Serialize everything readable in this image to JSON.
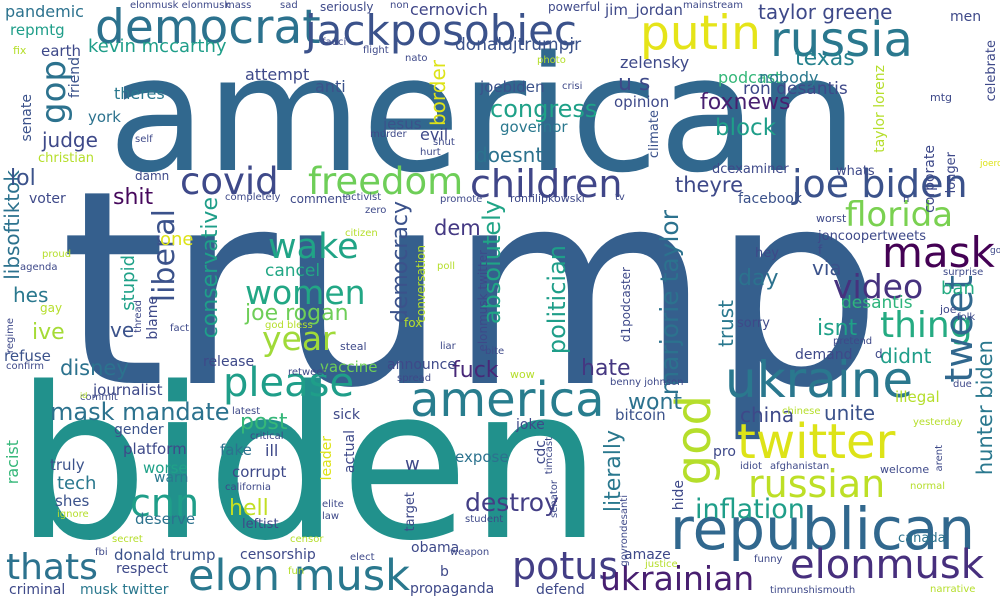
{
  "word_cloud": {
    "words": [
      {
        "text": "trump",
        "color": "#355f8d"
      },
      {
        "text": "biden",
        "color": "#21918c"
      },
      {
        "text": "american",
        "color": "#31688e"
      },
      {
        "text": "democrat",
        "color": "#2c728e"
      },
      {
        "text": "jackposobiec",
        "color": "#3b528b"
      },
      {
        "text": "putin",
        "color": "#e5e419"
      },
      {
        "text": "russia",
        "color": "#2a788e"
      },
      {
        "text": "republican",
        "color": "#31688e"
      },
      {
        "text": "ukraine",
        "color": "#2a788e"
      },
      {
        "text": "elon musk",
        "color": "#2a788e"
      },
      {
        "text": "elonmusk",
        "color": "#472f7d"
      },
      {
        "text": "twitter",
        "color": "#dde318"
      },
      {
        "text": "joe biden",
        "color": "#3b528b"
      },
      {
        "text": "children",
        "color": "#404688"
      },
      {
        "text": "covid",
        "color": "#3e4989"
      },
      {
        "text": "freedom",
        "color": "#6ece58"
      },
      {
        "text": "america",
        "color": "#287d8e"
      },
      {
        "text": "please",
        "color": "#1f9e89"
      },
      {
        "text": "mask",
        "color": "#440154"
      },
      {
        "text": "florida",
        "color": "#7ad151"
      },
      {
        "text": "thing",
        "color": "#25ab82"
      },
      {
        "text": "video",
        "color": "#46327e"
      },
      {
        "text": "wake",
        "color": "#20a486"
      },
      {
        "text": "women",
        "color": "#22a785"
      },
      {
        "text": "year",
        "color": "#a0da39"
      },
      {
        "text": "cnn",
        "color": "#1f9e89"
      },
      {
        "text": "god",
        "color": "#b5de2b"
      },
      {
        "text": "russian",
        "color": "#bddf26"
      },
      {
        "text": "tweet",
        "color": "#31688e"
      },
      {
        "text": "potus",
        "color": "#433e85"
      },
      {
        "text": "thats",
        "color": "#2c728e"
      },
      {
        "text": "ukrainian",
        "color": "#481f70"
      },
      {
        "text": "taylor greene",
        "color": "#3e4989"
      },
      {
        "text": "texas",
        "color": "#26828e"
      },
      {
        "text": "gop",
        "color": "#2c728e"
      },
      {
        "text": "liberal",
        "color": "#3b528b"
      },
      {
        "text": "mask mandate",
        "color": "#2c728e"
      },
      {
        "text": "joe rogan",
        "color": "#6ece58"
      },
      {
        "text": "congress",
        "color": "#1fa188"
      },
      {
        "text": "foxnews",
        "color": "#481f70"
      },
      {
        "text": "block",
        "color": "#1f9e89"
      },
      {
        "text": "conservative",
        "color": "#1f9e89"
      },
      {
        "text": "inflation",
        "color": "#1f9e89"
      },
      {
        "text": "hunter biden",
        "color": "#2a788e"
      },
      {
        "text": "marjorie taylor",
        "color": "#2c728e"
      },
      {
        "text": "destroy",
        "color": "#433e85"
      },
      {
        "text": "democracy",
        "color": "#3b528b"
      },
      {
        "text": "absolutely",
        "color": "#20a486"
      },
      {
        "text": "politician",
        "color": "#1f9e89"
      },
      {
        "text": "libsoftiktok",
        "color": "#2c728e"
      },
      {
        "text": "kevin mccarthy",
        "color": "#1f9e89"
      },
      {
        "text": "donaldjtrumpjr",
        "color": "#3b528b"
      },
      {
        "text": "judge",
        "color": "#3e4989"
      },
      {
        "text": "lol",
        "color": "#3b528b"
      },
      {
        "text": "shit",
        "color": "#46085c"
      },
      {
        "text": "doesnt",
        "color": "#2c728e"
      },
      {
        "text": "theyre",
        "color": "#3e4989"
      },
      {
        "text": "u s",
        "color": "#3e4989"
      },
      {
        "text": "border",
        "color": "#dde318"
      },
      {
        "text": "hes",
        "color": "#2a788e"
      },
      {
        "text": "ive",
        "color": "#a5db36"
      },
      {
        "text": "disney",
        "color": "#2c728e"
      },
      {
        "text": "post",
        "color": "#35b779"
      },
      {
        "text": "hell",
        "color": "#c2df23"
      },
      {
        "text": "day",
        "color": "#2c728e"
      },
      {
        "text": "via",
        "color": "#3b528b"
      },
      {
        "text": "isnt",
        "color": "#1fa188"
      },
      {
        "text": "didnt",
        "color": "#1f9e89"
      },
      {
        "text": "hate",
        "color": "#453781"
      },
      {
        "text": "fuck",
        "color": "#482878"
      },
      {
        "text": "wont",
        "color": "#2c728e"
      },
      {
        "text": "unite",
        "color": "#3b528b"
      },
      {
        "text": "china",
        "color": "#3e4989"
      },
      {
        "text": "tech",
        "color": "#2a788e"
      },
      {
        "text": "literally",
        "color": "#2a788e"
      },
      {
        "text": "trust",
        "color": "#2a788e"
      },
      {
        "text": "desantis",
        "color": "#2fb47c"
      },
      {
        "text": "ban",
        "color": "#25ab82"
      },
      {
        "text": "ron desantis",
        "color": "#3e4989"
      },
      {
        "text": "dem",
        "color": "#443983"
      },
      {
        "text": "one",
        "color": "#dde318"
      },
      {
        "text": "ve",
        "color": "#3b528b"
      },
      {
        "text": "stupid",
        "color": "#1fa188"
      },
      {
        "text": "cancel",
        "color": "#22a785"
      },
      {
        "text": "zelensky",
        "color": "#3e4989"
      },
      {
        "text": "podcast",
        "color": "#35b779"
      },
      {
        "text": "nobody",
        "color": "#2a788e"
      },
      {
        "text": "attempt",
        "color": "#3e4989"
      },
      {
        "text": "anti",
        "color": "#3b528b"
      },
      {
        "text": "jim_jordan",
        "color": "#3e4989"
      },
      {
        "text": "cernovich",
        "color": "#404688"
      },
      {
        "text": "jesus",
        "color": "#3b528b"
      },
      {
        "text": "evil",
        "color": "#3e4989"
      },
      {
        "text": "governor",
        "color": "#2a788e"
      },
      {
        "text": "joebiden",
        "color": "#3b528b"
      },
      {
        "text": "opinion",
        "color": "#3e4989"
      },
      {
        "text": "theres",
        "color": "#2a788e"
      },
      {
        "text": "earth",
        "color": "#3e4989"
      },
      {
        "text": "friend",
        "color": "#3b528b"
      },
      {
        "text": "york",
        "color": "#2c728e"
      },
      {
        "text": "senate",
        "color": "#3b528b"
      },
      {
        "text": "pandemic",
        "color": "#2c728e"
      },
      {
        "text": "repmtg",
        "color": "#1f9e89"
      },
      {
        "text": "fix",
        "color": "#b5de2b"
      },
      {
        "text": "christian",
        "color": "#b5de2b"
      },
      {
        "text": "voter",
        "color": "#3e4989"
      },
      {
        "text": "refuse",
        "color": "#3b528b"
      },
      {
        "text": "journalist",
        "color": "#3e4989"
      },
      {
        "text": "gender",
        "color": "#3b528b"
      },
      {
        "text": "platform",
        "color": "#3e4989"
      },
      {
        "text": "worse",
        "color": "#1fa188"
      },
      {
        "text": "warn",
        "color": "#2a788e"
      },
      {
        "text": "truly",
        "color": "#3b528b"
      },
      {
        "text": "shes",
        "color": "#3b528b"
      },
      {
        "text": "deserve",
        "color": "#2c728e"
      },
      {
        "text": "racist",
        "color": "#35b779"
      },
      {
        "text": "fake",
        "color": "#2c728e"
      },
      {
        "text": "ill",
        "color": "#3e4989"
      },
      {
        "text": "corrupt",
        "color": "#3e4989"
      },
      {
        "text": "leftist",
        "color": "#3e4989"
      },
      {
        "text": "donald trump",
        "color": "#3b528b"
      },
      {
        "text": "respect",
        "color": "#3e4989"
      },
      {
        "text": "criminal",
        "color": "#3e4989"
      },
      {
        "text": "musk twitter",
        "color": "#2a788e"
      },
      {
        "text": "censorship",
        "color": "#3e4989"
      },
      {
        "text": "obama",
        "color": "#3e4989"
      },
      {
        "text": "propaganda",
        "color": "#3e4989"
      },
      {
        "text": "defend",
        "color": "#3e4989"
      },
      {
        "text": "amaze",
        "color": "#3e4989"
      },
      {
        "text": "sick",
        "color": "#3e4989"
      },
      {
        "text": "vaccine",
        "color": "#6ece58"
      },
      {
        "text": "announce",
        "color": "#3e4989"
      },
      {
        "text": "release",
        "color": "#3e4989"
      },
      {
        "text": "expose",
        "color": "#2c728e"
      },
      {
        "text": "joke",
        "color": "#3e4989"
      },
      {
        "text": "bitcoin",
        "color": "#3b528b"
      },
      {
        "text": "actual",
        "color": "#3e4989"
      },
      {
        "text": "leader",
        "color": "#dde318"
      },
      {
        "text": "cdc",
        "color": "#3e4989"
      },
      {
        "text": "target",
        "color": "#3e4989"
      },
      {
        "text": "illegal",
        "color": "#b5de2b"
      },
      {
        "text": "pro",
        "color": "#3e4989"
      },
      {
        "text": "canada",
        "color": "#2c728e"
      },
      {
        "text": "hide",
        "color": "#3e4989"
      },
      {
        "text": "demand",
        "color": "#3e4989"
      },
      {
        "text": "sorry",
        "color": "#3e4989"
      },
      {
        "text": "hey",
        "color": "#3e4989"
      },
      {
        "text": "facebook",
        "color": "#3b528b"
      },
      {
        "text": "joncoopertweets",
        "color": "#3e4989"
      },
      {
        "text": "dcexaminer",
        "color": "#3e4989"
      },
      {
        "text": "climate",
        "color": "#3b528b"
      },
      {
        "text": "corporate",
        "color": "#3e4989"
      },
      {
        "text": "longer",
        "color": "#3e4989"
      },
      {
        "text": "taylor lorenz",
        "color": "#b5de2b"
      },
      {
        "text": "whats",
        "color": "#3e4989"
      },
      {
        "text": "celebrate",
        "color": "#3e4989"
      },
      {
        "text": "men",
        "color": "#3e4989"
      },
      {
        "text": "mtg",
        "color": "#3e4989"
      },
      {
        "text": "joerogan",
        "color": "#dde318"
      },
      {
        "text": "worst",
        "color": "#3e4989"
      },
      {
        "text": "gon",
        "color": "#3e4989"
      },
      {
        "text": "surprise",
        "color": "#3e4989"
      },
      {
        "text": "folk",
        "color": "#3e4989"
      },
      {
        "text": "joe",
        "color": "#3e4989"
      },
      {
        "text": "pretend",
        "color": "#3e4989"
      },
      {
        "text": "due",
        "color": "#3e4989"
      },
      {
        "text": "yesterday",
        "color": "#b5de2b"
      },
      {
        "text": "welcome",
        "color": "#3e4989"
      },
      {
        "text": "normal",
        "color": "#b5de2b"
      },
      {
        "text": "arent",
        "color": "#3e4989"
      },
      {
        "text": "chinese",
        "color": "#b5de2b"
      },
      {
        "text": "afghanistan",
        "color": "#3e4989"
      },
      {
        "text": "idiot",
        "color": "#3e4989"
      },
      {
        "text": "funny",
        "color": "#3e4989"
      },
      {
        "text": "narrative",
        "color": "#b5de2b"
      },
      {
        "text": "timrunshismouth",
        "color": "#3e4989"
      },
      {
        "text": "govrondesanti",
        "color": "#3e4989"
      },
      {
        "text": "justice",
        "color": "#b5de2b"
      },
      {
        "text": "student",
        "color": "#3e4989"
      },
      {
        "text": "weapon",
        "color": "#3e4989"
      },
      {
        "text": "elect",
        "color": "#3e4989"
      },
      {
        "text": "law",
        "color": "#3e4989"
      },
      {
        "text": "elite",
        "color": "#3e4989"
      },
      {
        "text": "censor",
        "color": "#b5de2b"
      },
      {
        "text": "california",
        "color": "#3e4989"
      },
      {
        "text": "critical",
        "color": "#3e4989"
      },
      {
        "text": "latest",
        "color": "#3e4989"
      },
      {
        "text": "senator",
        "color": "#3e4989"
      },
      {
        "text": "timcast",
        "color": "#3e4989"
      },
      {
        "text": "benny johnson",
        "color": "#3e4989"
      },
      {
        "text": "wow",
        "color": "#b5de2b"
      },
      {
        "text": "spread",
        "color": "#3e4989"
      },
      {
        "text": "retweet",
        "color": "#3e4989"
      },
      {
        "text": "bite",
        "color": "#3e4989"
      },
      {
        "text": "liar",
        "color": "#3e4989"
      },
      {
        "text": "steal",
        "color": "#3e4989"
      },
      {
        "text": "god bless",
        "color": "#b5de2b"
      },
      {
        "text": "fact",
        "color": "#3e4989"
      },
      {
        "text": "thread",
        "color": "#3e4989"
      },
      {
        "text": "blame",
        "color": "#3e4989"
      },
      {
        "text": "fox",
        "color": "#b5de2b"
      },
      {
        "text": "conversation",
        "color": "#b5de2b"
      },
      {
        "text": "elonmusk twitter",
        "color": "#3e4989"
      },
      {
        "text": "d1podcaster",
        "color": "#3e4989"
      },
      {
        "text": "poll",
        "color": "#b5de2b"
      },
      {
        "text": "citizen",
        "color": "#b5de2b"
      },
      {
        "text": "ronfilipkowski",
        "color": "#3e4989"
      },
      {
        "text": "promote",
        "color": "#3e4989"
      },
      {
        "text": "tv",
        "color": "#3e4989"
      },
      {
        "text": "zero",
        "color": "#3e4989"
      },
      {
        "text": "activist",
        "color": "#3e4989"
      },
      {
        "text": "completely",
        "color": "#3e4989"
      },
      {
        "text": "comment",
        "color": "#3e4989"
      },
      {
        "text": "damn",
        "color": "#3e4989"
      },
      {
        "text": "self",
        "color": "#3e4989"
      },
      {
        "text": "murder",
        "color": "#3e4989"
      },
      {
        "text": "hurt",
        "color": "#3e4989"
      },
      {
        "text": "shut",
        "color": "#3e4989"
      },
      {
        "text": "crisi",
        "color": "#3e4989"
      },
      {
        "text": "photo",
        "color": "#b5de2b"
      },
      {
        "text": "flight",
        "color": "#3e4989"
      },
      {
        "text": "nato",
        "color": "#3e4989"
      },
      {
        "text": "fauci",
        "color": "#3e4989"
      },
      {
        "text": "seriously",
        "color": "#3e4989"
      },
      {
        "text": "powerful",
        "color": "#3e4989"
      },
      {
        "text": "mainstream",
        "color": "#3e4989"
      },
      {
        "text": "sad",
        "color": "#3e4989"
      },
      {
        "text": "non",
        "color": "#3e4989"
      },
      {
        "text": "mass",
        "color": "#3e4989"
      },
      {
        "text": "elonmusk elonmusk",
        "color": "#3e4989"
      },
      {
        "text": "proud",
        "color": "#b5de2b"
      },
      {
        "text": "agenda",
        "color": "#3e4989"
      },
      {
        "text": "gay",
        "color": "#b5de2b"
      },
      {
        "text": "regime",
        "color": "#3e4989"
      },
      {
        "text": "confirm",
        "color": "#3e4989"
      },
      {
        "text": "commit",
        "color": "#3e4989"
      },
      {
        "text": "id",
        "color": "#b5de2b"
      },
      {
        "text": "secret",
        "color": "#b5de2b"
      },
      {
        "text": "fbi",
        "color": "#3e4989"
      },
      {
        "text": "ignore",
        "color": "#b5de2b"
      },
      {
        "text": "fun",
        "color": "#b5de2b"
      },
      {
        "text": "b",
        "color": "#3e4989"
      },
      {
        "text": "w",
        "color": "#3e4989"
      },
      {
        "text": "d",
        "color": "#3e4989"
      },
      {
        "text": "f",
        "color": "#3e4989"
      },
      {
        "text": "h",
        "color": "#3e4989"
      }
    ]
  }
}
